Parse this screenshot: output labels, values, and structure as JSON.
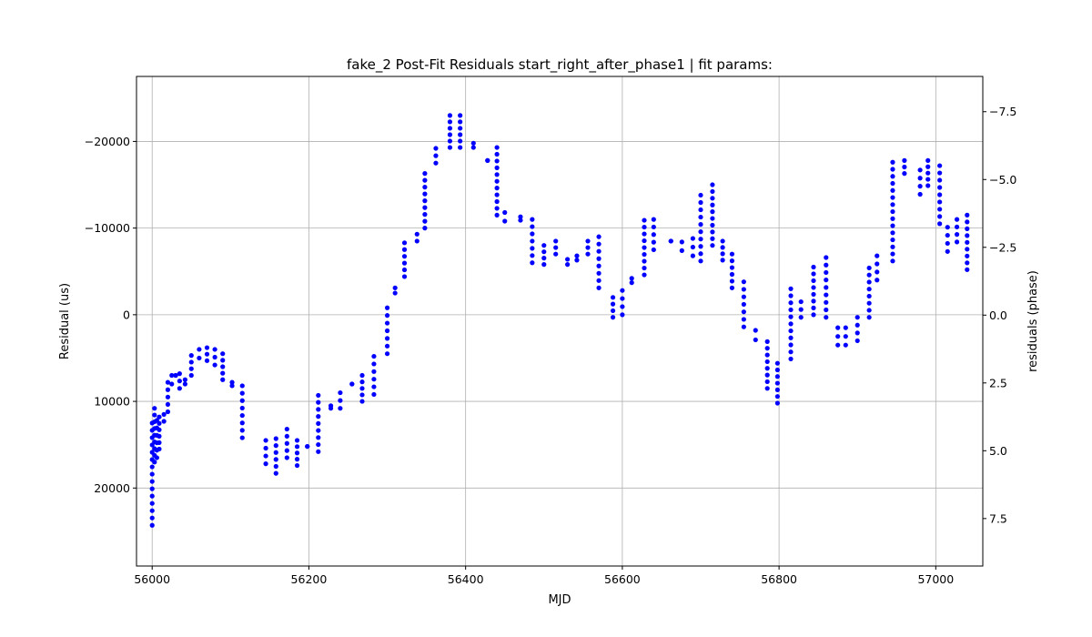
{
  "chart_data": {
    "type": "scatter",
    "title": "fake_2 Post-Fit Residuals start_right_after_phase1 | fit params:",
    "xlabel": "MJD",
    "ylabel": "Residual (us)",
    "y2label": "residuals (phase)",
    "xlim": [
      55980,
      57060
    ],
    "ylim": [
      29000,
      -27500
    ],
    "y2lim": [
      9.25,
      -8.8
    ],
    "yinverted": true,
    "grid": true,
    "marker_color": "#0000ff",
    "xticks": [
      56000,
      56200,
      56400,
      56600,
      56800,
      57000
    ],
    "xtick_labels": [
      "56000",
      "56200",
      "56400",
      "56600",
      "56800",
      "57000"
    ],
    "yticks": [
      -20000,
      -10000,
      0,
      10000,
      20000
    ],
    "ytick_labels": [
      "−20000",
      "−10000",
      "0",
      "10000",
      "20000"
    ],
    "y2ticks": [
      -7.5,
      -5.0,
      -2.5,
      0.0,
      2.5,
      5.0,
      7.5
    ],
    "y2tick_labels": [
      "−7.5",
      "−5.0",
      "−2.5",
      "0.0",
      "2.5",
      "5.0",
      "7.5"
    ],
    "series": [
      {
        "columns": [
          [
            56000,
            12500,
            24300
          ],
          [
            56003,
            10800,
            17000
          ],
          [
            56006,
            12200,
            16500
          ],
          [
            56009,
            11800,
            15500
          ],
          [
            56015,
            11500,
            12300
          ],
          [
            56020,
            7800,
            11200
          ],
          [
            56025,
            7000,
            8000
          ],
          [
            56030,
            7000,
            7000
          ],
          [
            56035,
            6800,
            8500
          ],
          [
            56042,
            7500,
            8000
          ],
          [
            56050,
            4700,
            7000
          ],
          [
            56060,
            4000,
            5000
          ],
          [
            56070,
            3800,
            5300
          ],
          [
            56080,
            4000,
            5800
          ],
          [
            56090,
            4500,
            7500
          ],
          [
            56102,
            7800,
            8200
          ],
          [
            56115,
            8200,
            14200
          ],
          [
            56145,
            14500,
            17200
          ],
          [
            56158,
            14300,
            18300
          ],
          [
            56172,
            13200,
            16500
          ],
          [
            56185,
            14500,
            17400
          ],
          [
            56198,
            15200,
            15200
          ],
          [
            56212,
            9300,
            15800
          ],
          [
            56228,
            10500,
            10800
          ],
          [
            56240,
            9000,
            10800
          ],
          [
            56255,
            8000,
            8000
          ],
          [
            56268,
            7000,
            10000
          ],
          [
            56283,
            4800,
            9200
          ],
          [
            56300,
            -800,
            4500
          ],
          [
            56310,
            -3100,
            -2500
          ],
          [
            56322,
            -8300,
            -4400
          ],
          [
            56338,
            -9300,
            -8500
          ],
          [
            56348,
            -16300,
            -10000
          ],
          [
            56362,
            -19200,
            -17500
          ],
          [
            56380,
            -23000,
            -19300
          ],
          [
            56393,
            -23000,
            -19300
          ],
          [
            56410,
            -19800,
            -19300
          ],
          [
            56428,
            -17800,
            -17800
          ],
          [
            56440,
            -19300,
            -11500
          ],
          [
            56450,
            -11800,
            -10800
          ],
          [
            56470,
            -11300,
            -10900
          ],
          [
            56485,
            -11000,
            -6000
          ],
          [
            56500,
            -8000,
            -5800
          ],
          [
            56515,
            -8500,
            -7000
          ],
          [
            56530,
            -6400,
            -5800
          ],
          [
            56542,
            -6800,
            -6300
          ],
          [
            56556,
            -8500,
            -7000
          ],
          [
            56570,
            -9000,
            -3100
          ],
          [
            56588,
            -2000,
            300
          ],
          [
            56600,
            -2800,
            0
          ],
          [
            56612,
            -4200,
            -3700
          ],
          [
            56628,
            -10900,
            -4600
          ],
          [
            56640,
            -11000,
            -7500
          ],
          [
            56662,
            -8500,
            -8500
          ],
          [
            56676,
            -8400,
            -7400
          ],
          [
            56690,
            -8800,
            -6800
          ],
          [
            56700,
            -13800,
            -6200
          ],
          [
            56715,
            -15000,
            -8000
          ],
          [
            56728,
            -8500,
            -6300
          ],
          [
            56740,
            -7000,
            -3100
          ],
          [
            56755,
            -3800,
            1400
          ],
          [
            56770,
            1800,
            2900
          ],
          [
            56785,
            3100,
            8500
          ],
          [
            56798,
            5600,
            10200
          ],
          [
            56815,
            -3000,
            5100
          ],
          [
            56828,
            -1500,
            300
          ],
          [
            56844,
            -5500,
            0
          ],
          [
            56860,
            -6600,
            300
          ],
          [
            56875,
            1500,
            3500
          ],
          [
            56885,
            1500,
            3500
          ],
          [
            56900,
            300,
            3000
          ],
          [
            56915,
            -5400,
            300
          ],
          [
            56925,
            -6800,
            -4000
          ],
          [
            56945,
            -17600,
            -6200
          ],
          [
            56960,
            -17800,
            -16300
          ],
          [
            56980,
            -16700,
            -13900
          ],
          [
            56990,
            -17800,
            -14900
          ],
          [
            57005,
            -17200,
            -10500
          ],
          [
            57015,
            -10100,
            -7300
          ],
          [
            57027,
            -11000,
            -8400
          ],
          [
            57040,
            -11500,
            -5200
          ]
        ]
      }
    ]
  }
}
